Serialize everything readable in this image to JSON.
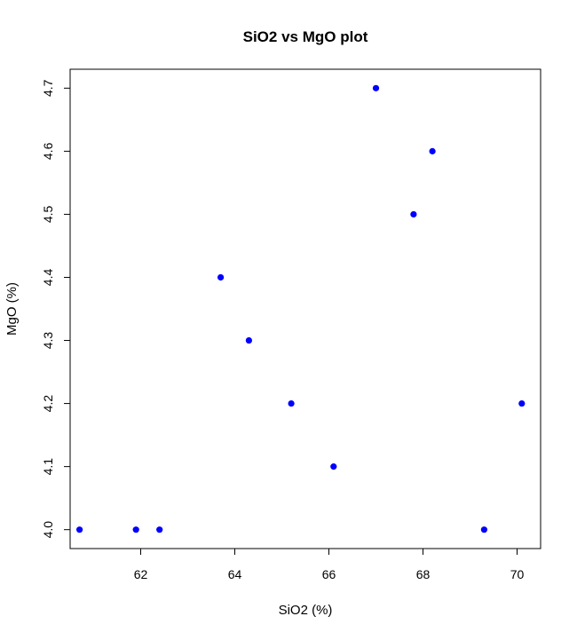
{
  "chart_data": {
    "type": "scatter",
    "title": "SiO2 vs MgO plot",
    "xlabel": "SiO2 (%)",
    "ylabel": "MgO (%)",
    "xlim": [
      60.5,
      70.5
    ],
    "ylim": [
      3.97,
      4.73
    ],
    "xticks": [
      62,
      64,
      66,
      68,
      70
    ],
    "yticks": [
      4.0,
      4.1,
      4.2,
      4.3,
      4.4,
      4.5,
      4.6,
      4.7
    ],
    "grid": false,
    "legend": "none",
    "point_color": "#0000ff",
    "points": [
      {
        "x": 60.7,
        "y": 4.0
      },
      {
        "x": 61.9,
        "y": 4.0
      },
      {
        "x": 62.4,
        "y": 4.0
      },
      {
        "x": 63.7,
        "y": 4.4
      },
      {
        "x": 64.3,
        "y": 4.3
      },
      {
        "x": 65.2,
        "y": 4.2
      },
      {
        "x": 66.1,
        "y": 4.1
      },
      {
        "x": 67.0,
        "y": 4.7
      },
      {
        "x": 67.8,
        "y": 4.5
      },
      {
        "x": 68.2,
        "y": 4.6
      },
      {
        "x": 69.3,
        "y": 4.0
      },
      {
        "x": 70.1,
        "y": 4.2
      }
    ]
  }
}
